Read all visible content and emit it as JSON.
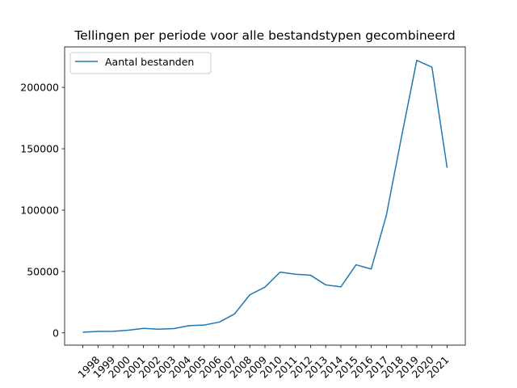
{
  "chart_data": {
    "type": "line",
    "title": "Tellingen per periode voor alle bestandstypen gecombineerd",
    "xlabel": "",
    "ylabel": "",
    "categories": [
      "",
      "1998",
      "1999",
      "2000",
      "2001",
      "2002",
      "2003",
      "2004",
      "2005",
      "2006",
      "2007",
      "2008",
      "2009",
      "2010",
      "2011",
      "2012",
      "2013",
      "2014",
      "2015",
      "2016",
      "2017",
      "2018",
      "2019",
      "2020",
      "2021"
    ],
    "series": [
      {
        "name": "Aantal bestanden",
        "color": "#1f77b4",
        "values": [
          500,
          1200,
          1300,
          2200,
          3700,
          3000,
          3500,
          5900,
          6400,
          8800,
          15500,
          31000,
          37300,
          49500,
          47800,
          47000,
          39100,
          37500,
          55500,
          52000,
          96000,
          160000,
          222000,
          216500,
          134500
        ]
      }
    ],
    "ylim": [
      -10000,
      233000
    ],
    "yticks": [
      0,
      50000,
      100000,
      150000,
      200000
    ],
    "ytick_labels": [
      "0",
      "50000",
      "100000",
      "150000",
      "200000"
    ],
    "legend": "top-left",
    "grid": false
  }
}
